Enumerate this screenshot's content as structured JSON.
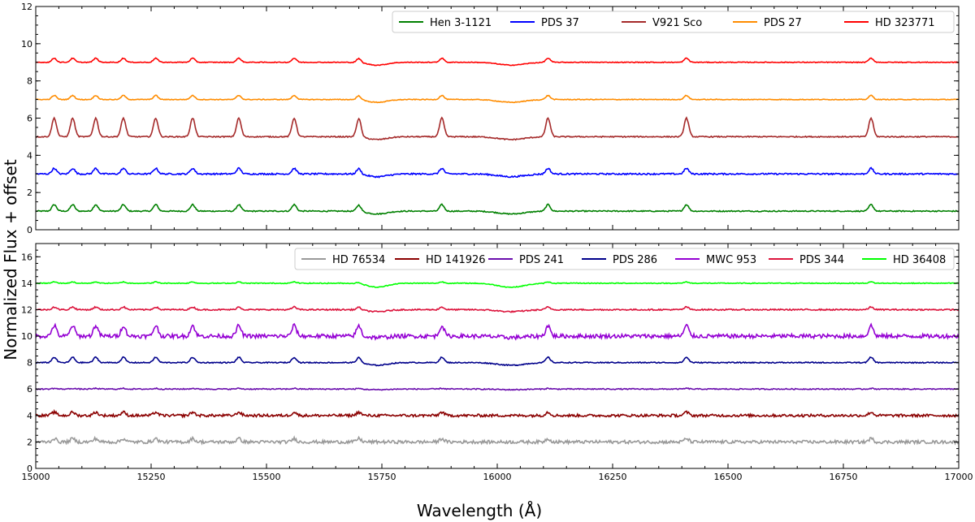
{
  "chart_data": {
    "type": "line",
    "xlabel": "Wavelength (Å)",
    "ylabel": "Normalized Flux + offset",
    "xlim": [
      15000,
      17000
    ],
    "xticks": [
      15000,
      15250,
      15500,
      15750,
      16000,
      16250,
      16500,
      16750,
      17000
    ],
    "lines_angstrom": [
      15040,
      15080,
      15130,
      15190,
      15260,
      15340,
      15440,
      15560,
      15700,
      15880,
      16110,
      16410,
      16810
    ],
    "panels": [
      {
        "ylim": [
          0,
          12
        ],
        "yticks": [
          0,
          2,
          4,
          6,
          8,
          10,
          12
        ],
        "legend_position": "top-right",
        "series": [
          {
            "name": "Hen 3-1121",
            "color": "#008000",
            "offset": 1,
            "noise": 0.03,
            "emission": 0.35,
            "absorption": 0.15
          },
          {
            "name": "PDS 37",
            "color": "#0000ff",
            "offset": 3,
            "noise": 0.04,
            "emission": 0.3,
            "absorption": 0.15
          },
          {
            "name": "V921 Sco",
            "color": "#a52a2a",
            "offset": 5,
            "noise": 0.03,
            "emission": 1.0,
            "absorption": 0.15
          },
          {
            "name": "PDS 27",
            "color": "#ff8c00",
            "offset": 7,
            "noise": 0.02,
            "emission": 0.22,
            "absorption": 0.15
          },
          {
            "name": "HD 323771",
            "color": "#ff0000",
            "offset": 9,
            "noise": 0.02,
            "emission": 0.22,
            "absorption": 0.15
          }
        ]
      },
      {
        "ylim": [
          0,
          17
        ],
        "yticks": [
          0,
          2,
          4,
          6,
          8,
          10,
          12,
          14,
          16
        ],
        "legend_position": "top-right",
        "series": [
          {
            "name": "HD 76534",
            "color": "#999999",
            "offset": 2,
            "noise": 0.12,
            "emission": 0.25,
            "absorption": 0.0
          },
          {
            "name": "HD 141926",
            "color": "#8b0000",
            "offset": 4,
            "noise": 0.1,
            "emission": 0.25,
            "absorption": 0.0
          },
          {
            "name": "PDS 241",
            "color": "#6a0dad",
            "offset": 6,
            "noise": 0.04,
            "emission": 0.05,
            "absorption": 0.05
          },
          {
            "name": "PDS 286",
            "color": "#00008b",
            "offset": 8,
            "noise": 0.04,
            "emission": 0.4,
            "absorption": 0.2
          },
          {
            "name": "MWC 953",
            "color": "#9400d3",
            "offset": 10,
            "noise": 0.15,
            "emission": 0.8,
            "absorption": 0.1
          },
          {
            "name": "PDS 344",
            "color": "#dc143c",
            "offset": 12,
            "noise": 0.05,
            "emission": 0.2,
            "absorption": 0.15
          },
          {
            "name": "HD 36408",
            "color": "#00ff00",
            "offset": 14,
            "noise": 0.03,
            "emission": 0.1,
            "absorption": 0.3
          }
        ]
      }
    ]
  }
}
